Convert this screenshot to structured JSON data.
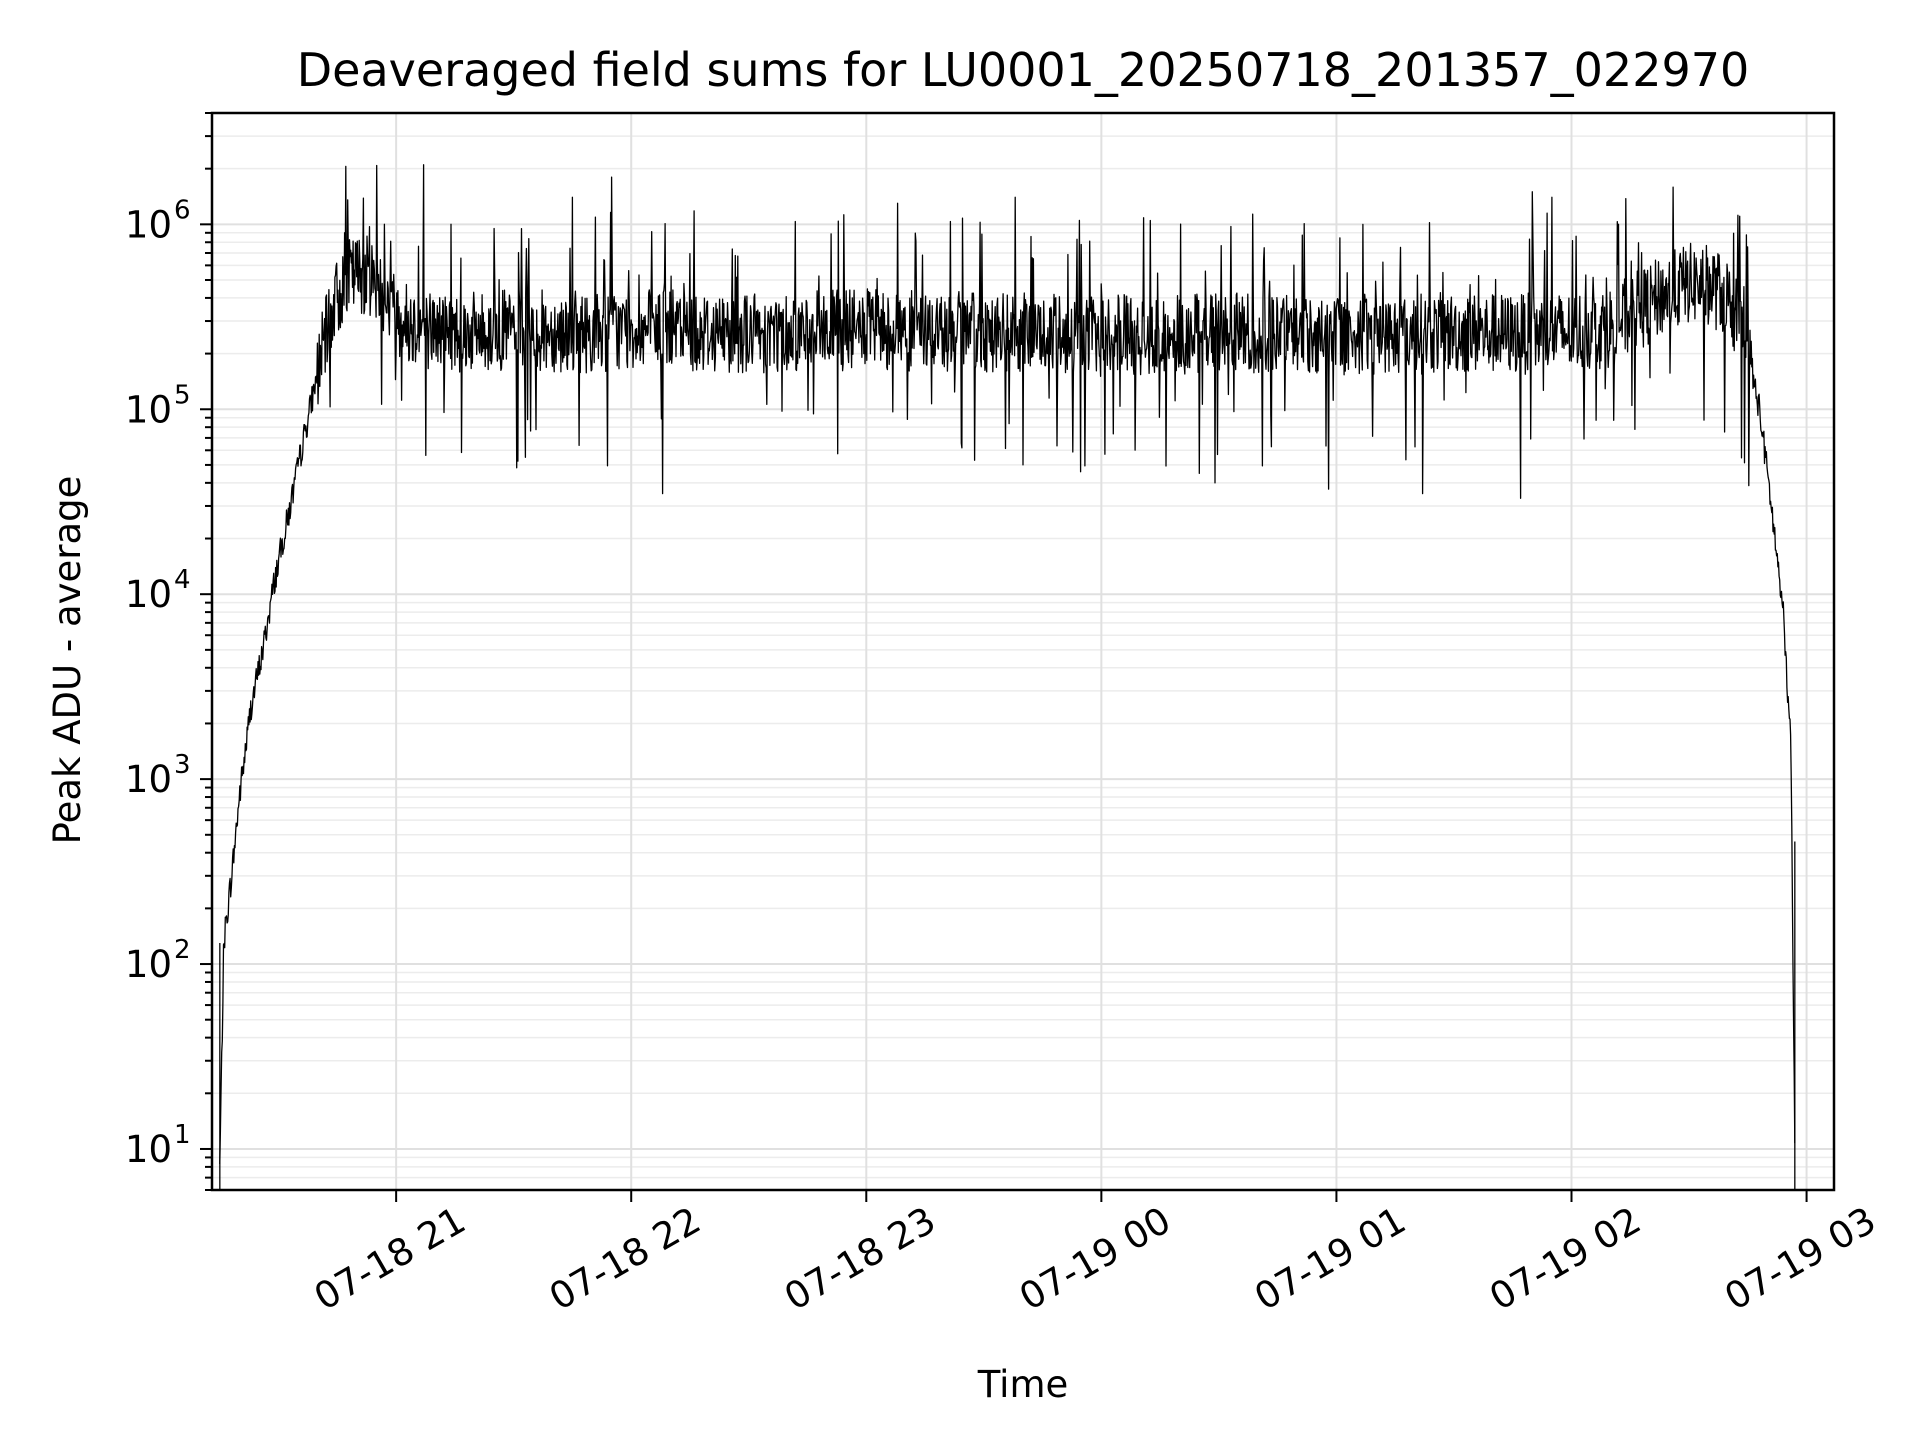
{
  "chart_data": {
    "type": "line",
    "title": "Deaveraged field sums for LU0001_20250718_201357_022970",
    "xlabel": "Time",
    "ylabel": "Peak ADU - average",
    "y_scale": "log",
    "ylim": [
      6,
      4000000
    ],
    "xlim": [
      "2025-07-18 20:13",
      "2025-07-19 03:07"
    ],
    "grid": true,
    "x_ticks": [
      {
        "value": "2025-07-18 21:00",
        "label": "07-18 21"
      },
      {
        "value": "2025-07-18 22:00",
        "label": "07-18 22"
      },
      {
        "value": "2025-07-18 23:00",
        "label": "07-18 23"
      },
      {
        "value": "2025-07-19 00:00",
        "label": "07-19 00"
      },
      {
        "value": "2025-07-19 01:00",
        "label": "07-19 01"
      },
      {
        "value": "2025-07-19 02:00",
        "label": "07-19 02"
      },
      {
        "value": "2025-07-19 03:00",
        "label": "07-19 03"
      }
    ],
    "y_ticks": [
      {
        "value": 10,
        "base": "10",
        "exp": "1"
      },
      {
        "value": 100,
        "base": "10",
        "exp": "2"
      },
      {
        "value": 1000,
        "base": "10",
        "exp": "3"
      },
      {
        "value": 10000,
        "base": "10",
        "exp": "4"
      },
      {
        "value": 100000,
        "base": "10",
        "exp": "5"
      },
      {
        "value": 1000000,
        "base": "10",
        "exp": "6"
      }
    ],
    "series": [
      {
        "color": "#000000",
        "x": [
          "2025-07-18 20:15",
          "2025-07-18 20:16",
          "2025-07-18 20:18",
          "2025-07-18 20:20",
          "2025-07-18 20:23",
          "2025-07-18 20:26",
          "2025-07-18 20:29",
          "2025-07-18 20:33",
          "2025-07-18 20:37",
          "2025-07-18 20:41",
          "2025-07-18 20:44",
          "2025-07-18 20:47",
          "2025-07-18 20:51",
          "2025-07-18 20:55",
          "2025-07-18 20:58",
          "2025-07-18 21:02",
          "2025-07-18 21:06",
          "2025-07-18 21:10",
          "2025-07-18 21:20",
          "2025-07-18 21:30",
          "2025-07-18 21:40",
          "2025-07-18 21:50",
          "2025-07-18 22:00",
          "2025-07-18 22:15",
          "2025-07-18 22:30",
          "2025-07-18 22:45",
          "2025-07-18 23:00",
          "2025-07-18 23:15",
          "2025-07-18 23:30",
          "2025-07-18 23:45",
          "2025-07-19 00:00",
          "2025-07-19 00:15",
          "2025-07-19 00:30",
          "2025-07-19 00:45",
          "2025-07-19 01:00",
          "2025-07-19 01:15",
          "2025-07-19 01:30",
          "2025-07-19 01:45",
          "2025-07-19 02:00",
          "2025-07-19 02:10",
          "2025-07-19 02:18",
          "2025-07-19 02:24",
          "2025-07-19 02:30",
          "2025-07-19 02:35",
          "2025-07-19 02:40",
          "2025-07-19 02:44",
          "2025-07-19 02:48",
          "2025-07-19 02:51",
          "2025-07-19 02:54",
          "2025-07-19 02:56",
          "2025-07-19 02:57"
        ],
        "y": [
          8,
          130,
          300,
          800,
          2500,
          5000,
          12000,
          30000,
          80000,
          200000,
          350000,
          500000,
          550000,
          500000,
          380000,
          300000,
          280000,
          270000,
          260000,
          270000,
          265000,
          260000,
          270000,
          265000,
          260000,
          265000,
          270000,
          265000,
          260000,
          255000,
          250000,
          255000,
          260000,
          255000,
          250000,
          255000,
          260000,
          255000,
          260000,
          280000,
          350000,
          420000,
          480000,
          470000,
          400000,
          250000,
          100000,
          30000,
          8000,
          1500,
          10
        ],
        "spikes_high": [
          {
            "x": "2025-07-18 21:07",
            "y": 2100000
          },
          {
            "x": "2025-07-18 21:55",
            "y": 1800000
          },
          {
            "x": "2025-07-18 21:45",
            "y": 1400000
          },
          {
            "x": "2025-07-18 23:08",
            "y": 1300000
          },
          {
            "x": "2025-07-18 23:38",
            "y": 1400000
          },
          {
            "x": "2025-07-19 01:50",
            "y": 1500000
          },
          {
            "x": "2025-07-19 01:55",
            "y": 1400000
          },
          {
            "x": "2025-07-19 02:12",
            "y": 1000000
          },
          {
            "x": "2025-07-18 20:57",
            "y": 1000000
          },
          {
            "x": "2025-07-18 21:14",
            "y": 1000000
          },
          {
            "x": "2025-07-18 21:25",
            "y": 950000
          }
        ],
        "spikes_low": [
          {
            "x": "2025-07-18 22:08",
            "y": 35000
          },
          {
            "x": "2025-07-19 00:25",
            "y": 45000
          },
          {
            "x": "2025-07-19 00:29",
            "y": 40000
          },
          {
            "x": "2025-07-19 00:58",
            "y": 37000
          },
          {
            "x": "2025-07-19 01:22",
            "y": 35000
          },
          {
            "x": "2025-07-19 01:47",
            "y": 33000
          },
          {
            "x": "2025-07-18 21:33",
            "y": 55000
          },
          {
            "x": "2025-07-18 23:40",
            "y": 50000
          }
        ]
      }
    ]
  }
}
